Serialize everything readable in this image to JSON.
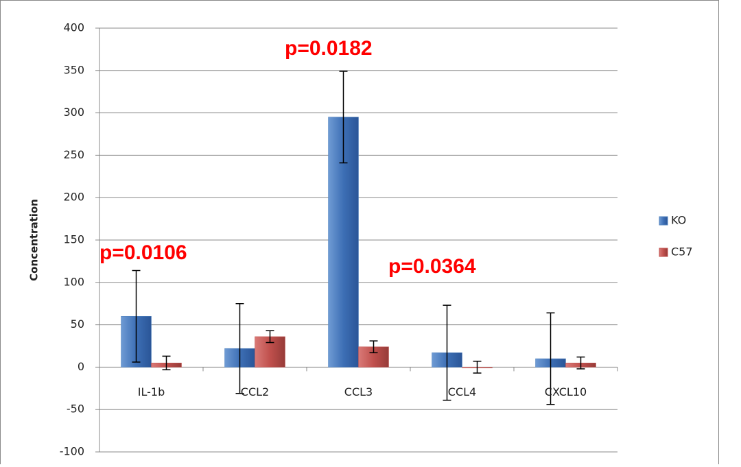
{
  "chart_data": {
    "type": "bar",
    "y_label": "Concentration",
    "categories": [
      "IL-1b",
      "CCL2",
      "CCL3",
      "CCL4",
      "CXCL10"
    ],
    "series": [
      {
        "name": "KO",
        "color": "#4f81bd",
        "values": [
          60,
          22,
          295,
          17,
          10
        ],
        "errors": [
          54,
          53,
          54,
          56,
          54
        ]
      },
      {
        "name": "C57",
        "color": "#c0504d",
        "values": [
          5,
          36,
          24,
          0,
          5
        ],
        "errors": [
          8,
          7,
          7,
          7,
          7
        ]
      }
    ],
    "ylim": [
      -100,
      400
    ],
    "yticks": [
      -100,
      -50,
      0,
      50,
      100,
      150,
      200,
      250,
      300,
      350,
      400
    ],
    "grid": true,
    "legend": "right",
    "annotations": [
      "p=0.0106",
      "p=0.0182",
      "p=0.0364"
    ]
  }
}
